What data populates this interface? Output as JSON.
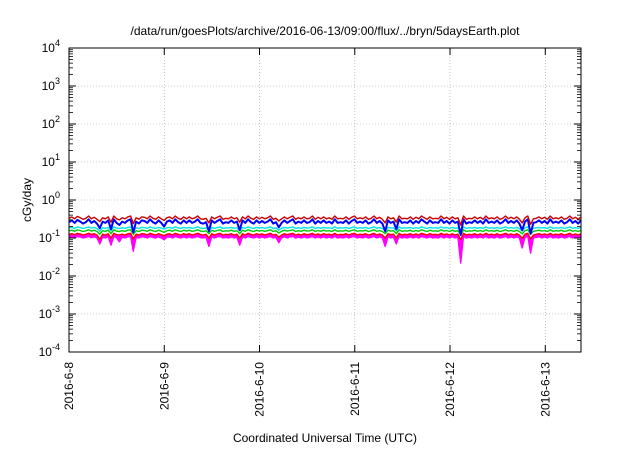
{
  "chart_data": {
    "type": "line",
    "title": "/data/run/goesPlots/archive/2016-06-13/09:00/flux/../bryn/5daysEarth.plot",
    "xlabel": "Coordinated Universal Time (UTC)",
    "ylabel": "cGy/day",
    "y_scale": "log",
    "ylim": [
      0.0001,
      10000
    ],
    "xlim": [
      "2016-06-08 00:00",
      "2016-06-13 09:00"
    ],
    "grid": true,
    "x_ticks": [
      "2016-6-8",
      "2016-6-9",
      "2016-6-10",
      "2016-6-11",
      "2016-6-12",
      "2016-6-13"
    ],
    "y_ticks": [
      {
        "base": "10",
        "exp": "4",
        "value": 10000
      },
      {
        "base": "10",
        "exp": "3",
        "value": 1000
      },
      {
        "base": "10",
        "exp": "2",
        "value": 100
      },
      {
        "base": "10",
        "exp": "1",
        "value": 10
      },
      {
        "base": "10",
        "exp": "0",
        "value": 1
      },
      {
        "base": "10",
        "exp": "-1",
        "value": 0.1
      },
      {
        "base": "10",
        "exp": "-2",
        "value": 0.01
      },
      {
        "base": "10",
        "exp": "-3",
        "value": 0.001
      },
      {
        "base": "10",
        "exp": "-4",
        "value": 0.0001
      }
    ],
    "series": [
      {
        "color": "#ff00ff",
        "values": [
          0.105,
          0.108,
          0.1,
          0.11,
          0.107,
          0.1,
          0.104,
          0.11,
          0.102,
          0.108,
          0.1,
          0.07,
          0.104,
          0.1,
          0.108,
          0.065,
          0.11,
          0.1,
          0.08,
          0.105,
          0.1,
          0.107,
          0.11,
          0.045,
          0.104,
          0.1,
          0.108,
          0.106,
          0.1,
          0.11,
          0.103,
          0.1,
          0.108,
          0.1,
          0.09,
          0.105,
          0.107,
          0.1,
          0.11,
          0.104,
          0.1,
          0.107,
          0.1,
          0.108,
          0.1,
          0.105,
          0.11,
          0.102,
          0.1,
          0.104,
          0.06,
          0.108,
          0.1,
          0.107,
          0.11,
          0.1,
          0.104,
          0.1,
          0.108,
          0.1,
          0.105,
          0.065,
          0.107,
          0.1,
          0.11,
          0.104,
          0.1,
          0.108,
          0.1,
          0.107,
          0.1,
          0.105,
          0.11,
          0.1,
          0.104,
          0.075,
          0.1,
          0.108,
          0.1,
          0.107,
          0.11,
          0.1,
          0.105,
          0.1,
          0.108,
          0.1,
          0.104,
          0.11,
          0.1,
          0.107,
          0.1,
          0.108,
          0.1,
          0.105,
          0.1,
          0.11,
          0.1,
          0.104,
          0.1,
          0.108,
          0.1,
          0.107,
          0.11,
          0.1,
          0.105,
          0.1,
          0.108,
          0.1,
          0.104,
          0.11,
          0.1,
          0.107,
          0.1,
          0.06,
          0.108,
          0.1,
          0.105,
          0.07,
          0.11,
          0.1,
          0.104,
          0.1,
          0.108,
          0.1,
          0.107,
          0.1,
          0.11,
          0.105,
          0.1,
          0.108,
          0.1,
          0.104,
          0.1,
          0.11,
          0.1,
          0.107,
          0.1,
          0.108,
          0.1,
          0.105,
          0.022,
          0.11,
          0.1,
          0.104,
          0.1,
          0.108,
          0.1,
          0.107,
          0.1,
          0.11,
          0.1,
          0.105,
          0.1,
          0.108,
          0.1,
          0.104,
          0.11,
          0.1,
          0.107,
          0.1,
          0.108,
          0.1,
          0.055,
          0.105,
          0.11,
          0.04,
          0.1,
          0.104,
          0.108,
          0.1,
          0.107,
          0.1,
          0.11,
          0.1,
          0.105,
          0.1,
          0.108,
          0.1,
          0.104,
          0.11,
          0.1,
          0.107,
          0.1,
          0.108
        ]
      },
      {
        "color": "#ff0000",
        "values": [
          0.125,
          0.13,
          0.122,
          0.132,
          0.128,
          0.12,
          0.125,
          0.133,
          0.124,
          0.13,
          0.12,
          0.092,
          0.126,
          0.12,
          0.13,
          0.1,
          0.133,
          0.122,
          0.12,
          0.126,
          0.12,
          0.13,
          0.133,
          0.095,
          0.126,
          0.12,
          0.13,
          0.128,
          0.12,
          0.133,
          0.125,
          0.12,
          0.13,
          0.122,
          0.115,
          0.126,
          0.13,
          0.12,
          0.133,
          0.125,
          0.12,
          0.13,
          0.122,
          0.13,
          0.12,
          0.126,
          0.133,
          0.124,
          0.12,
          0.125,
          0.1,
          0.13,
          0.12,
          0.128,
          0.133,
          0.12,
          0.125,
          0.122,
          0.13,
          0.12,
          0.126,
          0.1,
          0.13,
          0.12,
          0.133,
          0.125,
          0.12,
          0.13,
          0.122,
          0.128,
          0.12,
          0.126,
          0.133,
          0.12,
          0.125,
          0.105,
          0.12,
          0.13,
          0.122,
          0.128,
          0.133,
          0.12,
          0.126,
          0.12,
          0.13,
          0.122,
          0.125,
          0.133,
          0.12,
          0.128,
          0.12,
          0.13,
          0.122,
          0.126,
          0.12,
          0.133,
          0.12,
          0.125,
          0.122,
          0.13,
          0.12,
          0.128,
          0.133,
          0.12,
          0.126,
          0.122,
          0.13,
          0.12,
          0.125,
          0.133,
          0.12,
          0.128,
          0.12,
          0.1,
          0.13,
          0.122,
          0.126,
          0.1,
          0.133,
          0.12,
          0.125,
          0.122,
          0.13,
          0.12,
          0.128,
          0.12,
          0.133,
          0.126,
          0.12,
          0.13,
          0.122,
          0.125,
          0.12,
          0.133,
          0.122,
          0.128,
          0.12,
          0.13,
          0.12,
          0.126,
          0.09,
          0.133,
          0.12,
          0.125,
          0.122,
          0.13,
          0.12,
          0.128,
          0.12,
          0.133,
          0.122,
          0.126,
          0.12,
          0.13,
          0.12,
          0.125,
          0.133,
          0.122,
          0.128,
          0.12,
          0.13,
          0.12,
          0.098,
          0.126,
          0.133,
          0.095,
          0.12,
          0.125,
          0.13,
          0.122,
          0.128,
          0.12,
          0.133,
          0.12,
          0.126,
          0.122,
          0.13,
          0.12,
          0.125,
          0.133,
          0.12,
          0.128,
          0.12,
          0.13
        ]
      },
      {
        "color": "#00cc00",
        "values": [
          0.155,
          0.16,
          0.15,
          0.163,
          0.158,
          0.148,
          0.155,
          0.164,
          0.152,
          0.16,
          0.148,
          0.125,
          0.156,
          0.15,
          0.16,
          0.13,
          0.164,
          0.152,
          0.148,
          0.156,
          0.15,
          0.16,
          0.164,
          0.125,
          0.156,
          0.148,
          0.16,
          0.158,
          0.15,
          0.164,
          0.155,
          0.148,
          0.16,
          0.152,
          0.14,
          0.156,
          0.16,
          0.15,
          0.164,
          0.155,
          0.148,
          0.16,
          0.152,
          0.16,
          0.15,
          0.156,
          0.164,
          0.152,
          0.148,
          0.155,
          0.13,
          0.16,
          0.15,
          0.158,
          0.164,
          0.148,
          0.155,
          0.152,
          0.16,
          0.15,
          0.156,
          0.13,
          0.16,
          0.15,
          0.164,
          0.155,
          0.148,
          0.16,
          0.152,
          0.158,
          0.15,
          0.156,
          0.164,
          0.148,
          0.155,
          0.135,
          0.15,
          0.16,
          0.152,
          0.158,
          0.164,
          0.148,
          0.156,
          0.15,
          0.16,
          0.152,
          0.155,
          0.164,
          0.148,
          0.158,
          0.15,
          0.16,
          0.152,
          0.156,
          0.148,
          0.164,
          0.15,
          0.155,
          0.152,
          0.16,
          0.148,
          0.158,
          0.164,
          0.15,
          0.156,
          0.152,
          0.16,
          0.148,
          0.155,
          0.164,
          0.15,
          0.158,
          0.148,
          0.13,
          0.16,
          0.152,
          0.156,
          0.13,
          0.164,
          0.15,
          0.155,
          0.152,
          0.16,
          0.148,
          0.158,
          0.15,
          0.164,
          0.156,
          0.148,
          0.16,
          0.152,
          0.155,
          0.15,
          0.164,
          0.152,
          0.158,
          0.148,
          0.16,
          0.15,
          0.156,
          0.12,
          0.164,
          0.148,
          0.155,
          0.152,
          0.16,
          0.15,
          0.158,
          0.148,
          0.164,
          0.152,
          0.156,
          0.15,
          0.16,
          0.148,
          0.155,
          0.164,
          0.152,
          0.158,
          0.15,
          0.16,
          0.148,
          0.128,
          0.156,
          0.164,
          0.125,
          0.15,
          0.155,
          0.16,
          0.152,
          0.158,
          0.148,
          0.164,
          0.15,
          0.156,
          0.152,
          0.16,
          0.148,
          0.155,
          0.164,
          0.15,
          0.158,
          0.148,
          0.16
        ]
      },
      {
        "color": "#00e5e5",
        "values": [
          0.185,
          0.19,
          0.18,
          0.195,
          0.188,
          0.178,
          0.186,
          0.196,
          0.182,
          0.19,
          0.178,
          0.15,
          0.186,
          0.18,
          0.19,
          0.155,
          0.196,
          0.182,
          0.178,
          0.186,
          0.18,
          0.19,
          0.196,
          0.15,
          0.186,
          0.178,
          0.19,
          0.188,
          0.18,
          0.196,
          0.185,
          0.178,
          0.19,
          0.182,
          0.17,
          0.186,
          0.19,
          0.18,
          0.196,
          0.185,
          0.178,
          0.19,
          0.182,
          0.19,
          0.18,
          0.186,
          0.196,
          0.182,
          0.178,
          0.185,
          0.155,
          0.19,
          0.18,
          0.188,
          0.196,
          0.178,
          0.185,
          0.182,
          0.19,
          0.18,
          0.186,
          0.155,
          0.19,
          0.18,
          0.196,
          0.185,
          0.178,
          0.19,
          0.182,
          0.188,
          0.18,
          0.186,
          0.196,
          0.178,
          0.185,
          0.16,
          0.18,
          0.19,
          0.182,
          0.188,
          0.196,
          0.178,
          0.186,
          0.18,
          0.19,
          0.182,
          0.185,
          0.196,
          0.178,
          0.188,
          0.18,
          0.19,
          0.182,
          0.186,
          0.178,
          0.196,
          0.18,
          0.185,
          0.182,
          0.19,
          0.178,
          0.188,
          0.196,
          0.18,
          0.186,
          0.182,
          0.19,
          0.178,
          0.185,
          0.196,
          0.18,
          0.188,
          0.178,
          0.155,
          0.19,
          0.182,
          0.186,
          0.155,
          0.196,
          0.18,
          0.185,
          0.182,
          0.19,
          0.178,
          0.188,
          0.18,
          0.196,
          0.186,
          0.178,
          0.19,
          0.182,
          0.185,
          0.18,
          0.196,
          0.182,
          0.188,
          0.178,
          0.19,
          0.18,
          0.186,
          0.145,
          0.196,
          0.178,
          0.185,
          0.182,
          0.19,
          0.18,
          0.188,
          0.178,
          0.196,
          0.182,
          0.186,
          0.18,
          0.19,
          0.178,
          0.185,
          0.196,
          0.182,
          0.188,
          0.18,
          0.19,
          0.178,
          0.152,
          0.186,
          0.196,
          0.15,
          0.18,
          0.185,
          0.19,
          0.182,
          0.188,
          0.178,
          0.196,
          0.18,
          0.186,
          0.182,
          0.19,
          0.178,
          0.185,
          0.196,
          0.18,
          0.188,
          0.178,
          0.19
        ]
      },
      {
        "color": "#0000ff",
        "values": [
          0.26,
          0.29,
          0.25,
          0.3,
          0.27,
          0.24,
          0.26,
          0.31,
          0.25,
          0.28,
          0.24,
          0.18,
          0.27,
          0.25,
          0.29,
          0.17,
          0.31,
          0.25,
          0.22,
          0.27,
          0.25,
          0.29,
          0.31,
          0.14,
          0.27,
          0.24,
          0.29,
          0.28,
          0.25,
          0.31,
          0.26,
          0.24,
          0.29,
          0.25,
          0.2,
          0.27,
          0.29,
          0.25,
          0.31,
          0.26,
          0.24,
          0.29,
          0.25,
          0.29,
          0.25,
          0.27,
          0.31,
          0.25,
          0.24,
          0.26,
          0.15,
          0.29,
          0.25,
          0.28,
          0.31,
          0.24,
          0.26,
          0.25,
          0.29,
          0.25,
          0.27,
          0.16,
          0.29,
          0.25,
          0.31,
          0.26,
          0.24,
          0.29,
          0.25,
          0.28,
          0.25,
          0.27,
          0.31,
          0.24,
          0.26,
          0.19,
          0.25,
          0.29,
          0.25,
          0.28,
          0.31,
          0.24,
          0.27,
          0.25,
          0.29,
          0.25,
          0.26,
          0.31,
          0.24,
          0.28,
          0.25,
          0.29,
          0.25,
          0.27,
          0.24,
          0.31,
          0.25,
          0.26,
          0.25,
          0.29,
          0.24,
          0.28,
          0.31,
          0.25,
          0.27,
          0.25,
          0.29,
          0.24,
          0.26,
          0.31,
          0.25,
          0.28,
          0.24,
          0.15,
          0.29,
          0.25,
          0.27,
          0.17,
          0.31,
          0.25,
          0.26,
          0.25,
          0.29,
          0.24,
          0.28,
          0.25,
          0.31,
          0.27,
          0.24,
          0.29,
          0.25,
          0.26,
          0.25,
          0.31,
          0.25,
          0.28,
          0.24,
          0.29,
          0.25,
          0.27,
          0.12,
          0.31,
          0.24,
          0.26,
          0.25,
          0.29,
          0.25,
          0.28,
          0.24,
          0.31,
          0.25,
          0.27,
          0.25,
          0.29,
          0.24,
          0.26,
          0.31,
          0.25,
          0.28,
          0.25,
          0.29,
          0.24,
          0.16,
          0.27,
          0.31,
          0.13,
          0.25,
          0.26,
          0.29,
          0.25,
          0.28,
          0.24,
          0.31,
          0.25,
          0.27,
          0.25,
          0.29,
          0.24,
          0.26,
          0.31,
          0.25,
          0.28,
          0.24,
          0.29
        ]
      },
      {
        "color": "#cc0000",
        "values": [
          0.33,
          0.36,
          0.32,
          0.37,
          0.34,
          0.31,
          0.33,
          0.38,
          0.32,
          0.35,
          0.31,
          0.27,
          0.34,
          0.32,
          0.36,
          0.26,
          0.38,
          0.32,
          0.3,
          0.34,
          0.32,
          0.36,
          0.38,
          0.24,
          0.34,
          0.31,
          0.36,
          0.35,
          0.32,
          0.38,
          0.33,
          0.31,
          0.36,
          0.32,
          0.29,
          0.34,
          0.36,
          0.32,
          0.38,
          0.33,
          0.31,
          0.36,
          0.32,
          0.36,
          0.32,
          0.34,
          0.38,
          0.32,
          0.31,
          0.33,
          0.25,
          0.36,
          0.32,
          0.35,
          0.38,
          0.31,
          0.33,
          0.32,
          0.36,
          0.32,
          0.34,
          0.26,
          0.36,
          0.32,
          0.38,
          0.33,
          0.31,
          0.36,
          0.32,
          0.35,
          0.32,
          0.34,
          0.38,
          0.31,
          0.33,
          0.28,
          0.32,
          0.36,
          0.32,
          0.35,
          0.38,
          0.31,
          0.34,
          0.32,
          0.36,
          0.32,
          0.33,
          0.38,
          0.31,
          0.35,
          0.32,
          0.36,
          0.32,
          0.34,
          0.31,
          0.38,
          0.32,
          0.33,
          0.32,
          0.36,
          0.31,
          0.35,
          0.38,
          0.32,
          0.34,
          0.32,
          0.36,
          0.31,
          0.33,
          0.38,
          0.32,
          0.35,
          0.31,
          0.25,
          0.36,
          0.32,
          0.34,
          0.26,
          0.38,
          0.32,
          0.33,
          0.32,
          0.36,
          0.31,
          0.35,
          0.32,
          0.38,
          0.34,
          0.31,
          0.36,
          0.32,
          0.33,
          0.32,
          0.38,
          0.32,
          0.35,
          0.31,
          0.36,
          0.32,
          0.34,
          0.22,
          0.38,
          0.31,
          0.33,
          0.32,
          0.36,
          0.32,
          0.35,
          0.31,
          0.38,
          0.32,
          0.34,
          0.32,
          0.36,
          0.31,
          0.33,
          0.38,
          0.32,
          0.35,
          0.32,
          0.36,
          0.31,
          0.25,
          0.34,
          0.38,
          0.23,
          0.32,
          0.33,
          0.36,
          0.32,
          0.35,
          0.31,
          0.38,
          0.32,
          0.34,
          0.32,
          0.36,
          0.31,
          0.33,
          0.38,
          0.32,
          0.35,
          0.31,
          0.36
        ]
      }
    ]
  }
}
